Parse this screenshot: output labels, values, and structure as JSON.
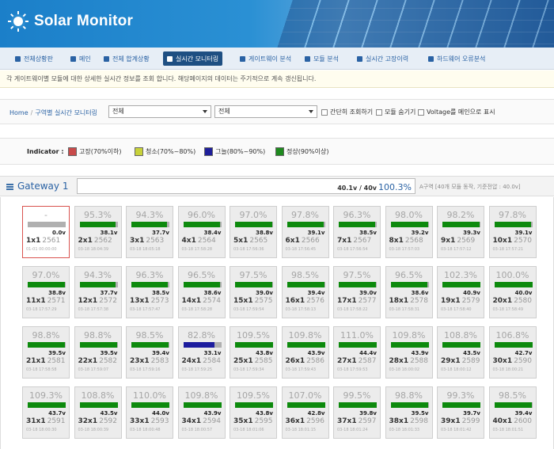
{
  "app": {
    "title": "Solar Monitor"
  },
  "nav": [
    {
      "label": "전체상황판",
      "active": false
    },
    {
      "label": "메인",
      "active": false
    },
    {
      "label": "전체 합계상황",
      "active": false
    },
    {
      "label": "실시간 모니터링",
      "active": true
    },
    {
      "label": "게이트웨이 분석",
      "active": false
    },
    {
      "label": "모듈 분석",
      "active": false
    },
    {
      "label": "실시간 고장이력",
      "active": false
    },
    {
      "label": "하드웨어 오류분석",
      "active": false
    }
  ],
  "notice": "각 게이트웨이별 모듈에 대한 상세한 실시간 정보를 조회 합니다. 해당페이지의 데이터는 주기적으로 계속 갱신됩니다.",
  "filter": {
    "breadcrumb_home": "Home",
    "breadcrumb_current": "구역별 실시간 모니터링",
    "select1": "전체",
    "select2": "전체",
    "checkboxes": [
      "간단히 조회하기",
      "모듈 숨기기",
      "Voltage를 메인으로 표시"
    ]
  },
  "indicator": {
    "title": "Indicator :",
    "items": [
      {
        "label": "고장(70%이하)",
        "color": "#c84a4a"
      },
      {
        "label": "청소(70%~80%)",
        "color": "#c8d23a"
      },
      {
        "label": "그늘(80%~90%)",
        "color": "#1f1f9a"
      },
      {
        "label": "정상(90%이상)",
        "color": "#1e8a1e"
      }
    ]
  },
  "gateway": {
    "title": "Gateway 1",
    "voltage": "40.1v / 40v",
    "percent": "100.3%",
    "percent_value": 100.3,
    "desc": "A구역 [40개 모듈 동작, 기준전압 : 40.0v]"
  },
  "colors": {
    "normal": "#0d8a0d",
    "shade": "#1c1c9e",
    "fault_bg": "#b7b7b7"
  },
  "modules": [
    {
      "pct": "-",
      "volt": "0.0v",
      "name": "1x1",
      "num": "2561",
      "ts": "01-01 00:00:00",
      "status": "fault",
      "fill": 0
    },
    {
      "pct": "95.3%",
      "volt": "38.1v",
      "name": "2x1",
      "num": "2562",
      "ts": "03-18 18:04:39",
      "status": "normal",
      "fill": 0.953
    },
    {
      "pct": "94.3%",
      "volt": "37.7v",
      "name": "3x1",
      "num": "2563",
      "ts": "03-18 18:05:18",
      "status": "normal",
      "fill": 0.943
    },
    {
      "pct": "96.0%",
      "volt": "38.4v",
      "name": "4x1",
      "num": "2564",
      "ts": "03-18 17:58:28",
      "status": "normal",
      "fill": 0.96
    },
    {
      "pct": "97.0%",
      "volt": "38.8v",
      "name": "5x1",
      "num": "2565",
      "ts": "03-18 17:56:36",
      "status": "normal",
      "fill": 0.97
    },
    {
      "pct": "97.8%",
      "volt": "39.1v",
      "name": "6x1",
      "num": "2566",
      "ts": "03-18 17:56:45",
      "status": "normal",
      "fill": 0.978
    },
    {
      "pct": "96.3%",
      "volt": "38.5v",
      "name": "7x1",
      "num": "2567",
      "ts": "03-18 17:56:54",
      "status": "normal",
      "fill": 0.963
    },
    {
      "pct": "98.0%",
      "volt": "39.2v",
      "name": "8x1",
      "num": "2568",
      "ts": "03-18 17:57:03",
      "status": "normal",
      "fill": 0.98
    },
    {
      "pct": "98.2%",
      "volt": "39.3v",
      "name": "9x1",
      "num": "2569",
      "ts": "03-18 17:57:12",
      "status": "normal",
      "fill": 0.982
    },
    {
      "pct": "97.8%",
      "volt": "39.1v",
      "name": "10x1",
      "num": "2570",
      "ts": "03-18 17:57:21",
      "status": "normal",
      "fill": 0.978
    },
    {
      "pct": "97.0%",
      "volt": "38.8v",
      "name": "11x1",
      "num": "2571",
      "ts": "03-18 17:57:29",
      "status": "normal",
      "fill": 0.97
    },
    {
      "pct": "94.3%",
      "volt": "37.7v",
      "name": "12x1",
      "num": "2572",
      "ts": "03-18 17:57:38",
      "status": "normal",
      "fill": 0.943
    },
    {
      "pct": "96.3%",
      "volt": "38.5v",
      "name": "13x1",
      "num": "2573",
      "ts": "03-18 17:57:47",
      "status": "normal",
      "fill": 0.963
    },
    {
      "pct": "96.5%",
      "volt": "38.6v",
      "name": "14x1",
      "num": "2574",
      "ts": "03-18 17:58:28",
      "status": "normal",
      "fill": 0.965
    },
    {
      "pct": "97.5%",
      "volt": "39.0v",
      "name": "15x1",
      "num": "2575",
      "ts": "03-18 17:59:54",
      "status": "normal",
      "fill": 0.975
    },
    {
      "pct": "98.5%",
      "volt": "39.4v",
      "name": "16x1",
      "num": "2576",
      "ts": "03-18 17:58:13",
      "status": "normal",
      "fill": 0.985
    },
    {
      "pct": "97.5%",
      "volt": "39.0v",
      "name": "17x1",
      "num": "2577",
      "ts": "03-18 17:58:22",
      "status": "normal",
      "fill": 0.975
    },
    {
      "pct": "96.5%",
      "volt": "38.6v",
      "name": "18x1",
      "num": "2578",
      "ts": "03-18 17:58:31",
      "status": "normal",
      "fill": 0.965
    },
    {
      "pct": "102.3%",
      "volt": "40.9v",
      "name": "19x1",
      "num": "2579",
      "ts": "03-18 17:58:40",
      "status": "normal",
      "fill": 1
    },
    {
      "pct": "100.0%",
      "volt": "40.0v",
      "name": "20x1",
      "num": "2580",
      "ts": "03-18 17:58:49",
      "status": "normal",
      "fill": 1
    },
    {
      "pct": "98.8%",
      "volt": "39.5v",
      "name": "21x1",
      "num": "2581",
      "ts": "03-18 17:58:58",
      "status": "normal",
      "fill": 0.988
    },
    {
      "pct": "98.8%",
      "volt": "39.5v",
      "name": "22x1",
      "num": "2582",
      "ts": "03-18 17:59:07",
      "status": "normal",
      "fill": 0.988
    },
    {
      "pct": "98.5%",
      "volt": "39.4v",
      "name": "23x1",
      "num": "2583",
      "ts": "03-18 17:59:16",
      "status": "normal",
      "fill": 0.985
    },
    {
      "pct": "82.8%",
      "volt": "33.1v",
      "name": "24x1",
      "num": "2584",
      "ts": "03-18 17:59:25",
      "status": "shade",
      "fill": 0.828
    },
    {
      "pct": "109.5%",
      "volt": "43.8v",
      "name": "25x1",
      "num": "2585",
      "ts": "03-18 17:59:34",
      "status": "normal",
      "fill": 1
    },
    {
      "pct": "109.8%",
      "volt": "43.9v",
      "name": "26x1",
      "num": "2586",
      "ts": "03-18 17:59:43",
      "status": "normal",
      "fill": 1
    },
    {
      "pct": "111.0%",
      "volt": "44.4v",
      "name": "27x1",
      "num": "2587",
      "ts": "03-18 17:59:53",
      "status": "normal",
      "fill": 1
    },
    {
      "pct": "109.8%",
      "volt": "43.9v",
      "name": "28x1",
      "num": "2588",
      "ts": "03-18 18:00:02",
      "status": "normal",
      "fill": 1
    },
    {
      "pct": "108.8%",
      "volt": "43.5v",
      "name": "29x1",
      "num": "2589",
      "ts": "03-18 18:00:12",
      "status": "normal",
      "fill": 1
    },
    {
      "pct": "106.8%",
      "volt": "42.7v",
      "name": "30x1",
      "num": "2590",
      "ts": "03-18 18:00:21",
      "status": "normal",
      "fill": 1
    },
    {
      "pct": "109.3%",
      "volt": "43.7v",
      "name": "31x1",
      "num": "2591",
      "ts": "03-18 18:00:30",
      "status": "normal",
      "fill": 1
    },
    {
      "pct": "108.8%",
      "volt": "43.5v",
      "name": "32x1",
      "num": "2592",
      "ts": "03-18 18:00:39",
      "status": "normal",
      "fill": 1
    },
    {
      "pct": "110.0%",
      "volt": "44.0v",
      "name": "33x1",
      "num": "2593",
      "ts": "03-18 18:00:48",
      "status": "normal",
      "fill": 1
    },
    {
      "pct": "109.8%",
      "volt": "43.9v",
      "name": "34x1",
      "num": "2594",
      "ts": "03-18 18:00:57",
      "status": "normal",
      "fill": 1
    },
    {
      "pct": "109.5%",
      "volt": "43.8v",
      "name": "35x1",
      "num": "2595",
      "ts": "03-18 18:01:06",
      "status": "normal",
      "fill": 1
    },
    {
      "pct": "107.0%",
      "volt": "42.8v",
      "name": "36x1",
      "num": "2596",
      "ts": "03-18 18:01:15",
      "status": "normal",
      "fill": 1
    },
    {
      "pct": "99.5%",
      "volt": "39.8v",
      "name": "37x1",
      "num": "2597",
      "ts": "03-18 18:01:24",
      "status": "normal",
      "fill": 0.995
    },
    {
      "pct": "98.8%",
      "volt": "39.5v",
      "name": "38x1",
      "num": "2598",
      "ts": "03-18 18:01:33",
      "status": "normal",
      "fill": 0.988
    },
    {
      "pct": "99.3%",
      "volt": "39.7v",
      "name": "39x1",
      "num": "2599",
      "ts": "03-18 18:01:42",
      "status": "normal",
      "fill": 0.993
    },
    {
      "pct": "98.5%",
      "volt": "39.4v",
      "name": "40x1",
      "num": "2600",
      "ts": "03-18 18:01:51",
      "status": "normal",
      "fill": 0.985
    }
  ]
}
